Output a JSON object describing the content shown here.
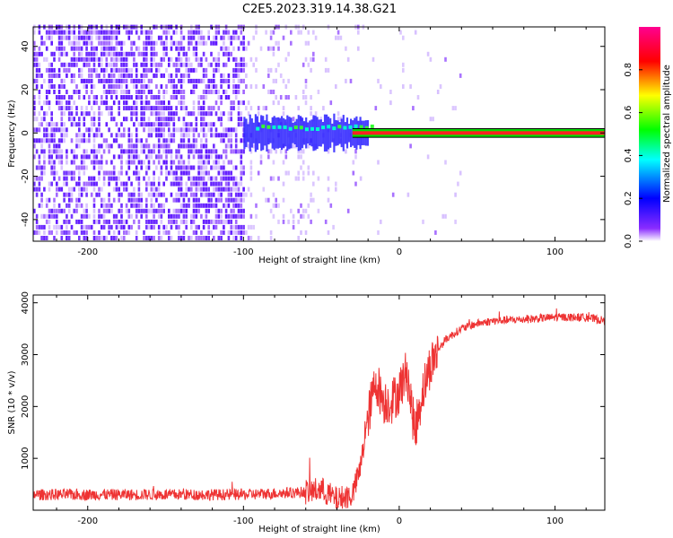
{
  "title": "C2E5.2023.319.14.38.G21",
  "colors": {
    "snr_series": "#ee3333",
    "spectrogram_background": "#ffffff",
    "colormap": [
      "#ffffff",
      "#6a00ff",
      "#0000ff",
      "#00ffff",
      "#00ff00",
      "#ffff00",
      "#ff0000",
      "#ff00a0"
    ]
  },
  "chart_data": [
    {
      "type": "heatmap",
      "xlabel": "Height of straight line (km)",
      "ylabel": "Frequency (Hz)",
      "xlim": [
        -235,
        132
      ],
      "ylim": [
        -50,
        49
      ],
      "x_ticks": [
        -200,
        -100,
        0,
        100
      ],
      "y_ticks": [
        -40,
        -20,
        0,
        20,
        40
      ],
      "colorbar": {
        "label": "Normalized spectral amplitude",
        "range": [
          0.0,
          1.0
        ],
        "ticks": [
          "0.0",
          "0.2",
          "0.4",
          "0.6",
          "0.8"
        ]
      },
      "features": {
        "broadband_noise_region_km": [
          -235,
          -100
        ],
        "signal_onset_km": -100,
        "signal_frequency_hz": 0,
        "signal_band_hz": [
          -2,
          2
        ]
      }
    },
    {
      "type": "line",
      "xlabel": "Height of straight line (km)",
      "ylabel": "SNR (10 * v/v)",
      "xlim": [
        -235,
        132
      ],
      "ylim": [
        0,
        4150
      ],
      "x_ticks": [
        -200,
        -100,
        0,
        100
      ],
      "y_ticks": [
        1000,
        2000,
        3000,
        4000
      ],
      "series": [
        {
          "x": [
            -235,
            -200,
            -150,
            -100,
            -60,
            -50,
            -40,
            -30,
            -25,
            -20,
            -15,
            -10,
            -5,
            0,
            5,
            10,
            15,
            20,
            25,
            30,
            40,
            50,
            60,
            80,
            100,
            120,
            132
          ],
          "values": [
            300,
            300,
            300,
            300,
            350,
            400,
            200,
            300,
            800,
            1800,
            2500,
            2100,
            2100,
            2300,
            2700,
            1500,
            2300,
            2800,
            3100,
            3300,
            3500,
            3600,
            3650,
            3680,
            3720,
            3720,
            3650
          ]
        }
      ]
    }
  ]
}
